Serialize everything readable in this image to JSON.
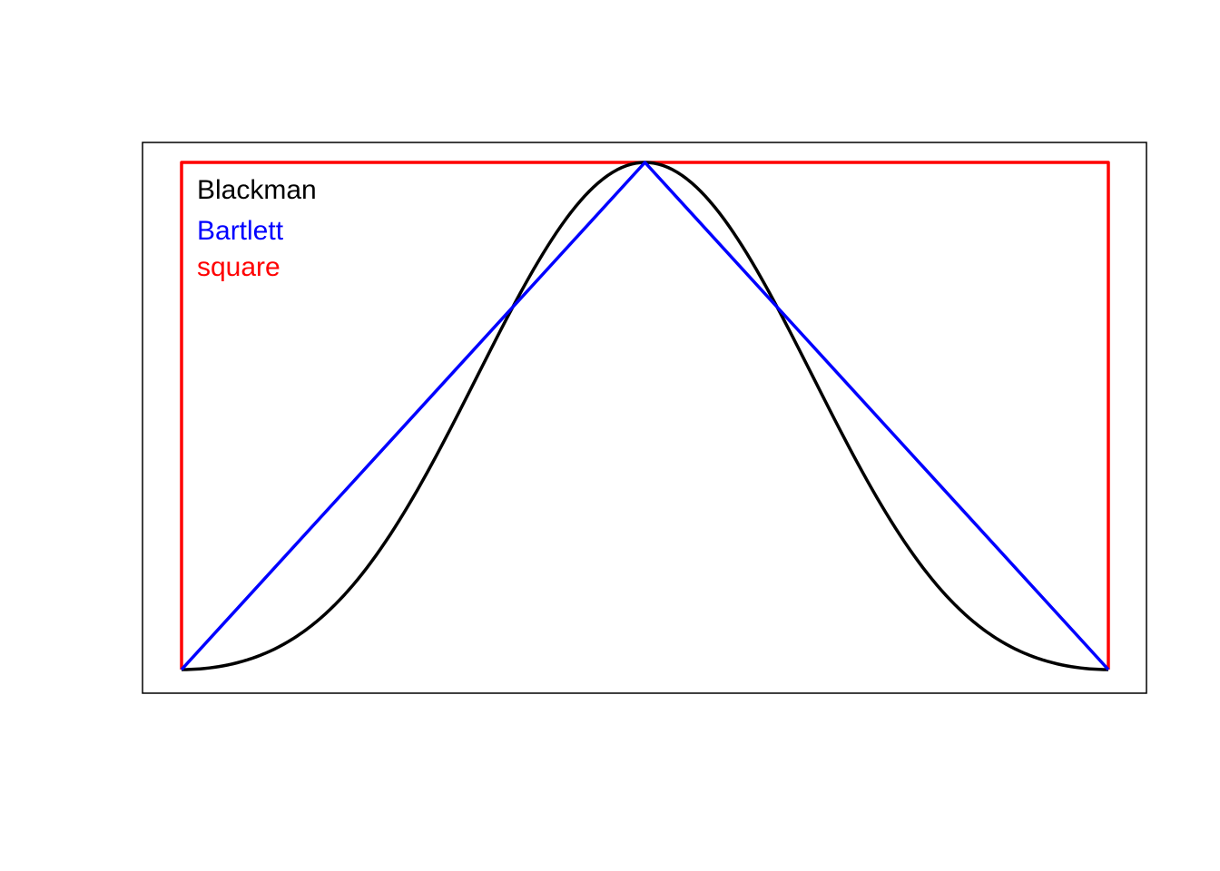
{
  "chart_data": {
    "type": "line",
    "title": "",
    "xlabel": "",
    "ylabel": "",
    "xlim": [
      0,
      1
    ],
    "ylim": [
      0,
      1
    ],
    "grid": false,
    "axes_visible": false,
    "legend_placement": "top-left",
    "series": [
      {
        "name": "Blackman",
        "color": "#000000",
        "function": "blackman",
        "x": [
          0,
          0.05,
          0.1,
          0.15,
          0.2,
          0.25,
          0.3,
          0.35,
          0.4,
          0.45,
          0.5,
          0.55,
          0.6,
          0.65,
          0.7,
          0.75,
          0.8,
          0.85,
          0.9,
          0.95,
          1
        ],
        "values": [
          0,
          0.008,
          0.041,
          0.101,
          0.2,
          0.34,
          0.51,
          0.689,
          0.849,
          0.96,
          1,
          0.96,
          0.849,
          0.689,
          0.51,
          0.34,
          0.2,
          0.101,
          0.041,
          0.008,
          0
        ]
      },
      {
        "name": "Bartlett",
        "color": "#0000ff",
        "function": "bartlett",
        "x": [
          0,
          0.5,
          1
        ],
        "values": [
          0,
          1,
          0
        ]
      },
      {
        "name": "square",
        "color": "#ff0000",
        "function": "square",
        "x": [
          0,
          0,
          1,
          1
        ],
        "values": [
          0,
          1,
          1,
          0
        ]
      }
    ]
  }
}
